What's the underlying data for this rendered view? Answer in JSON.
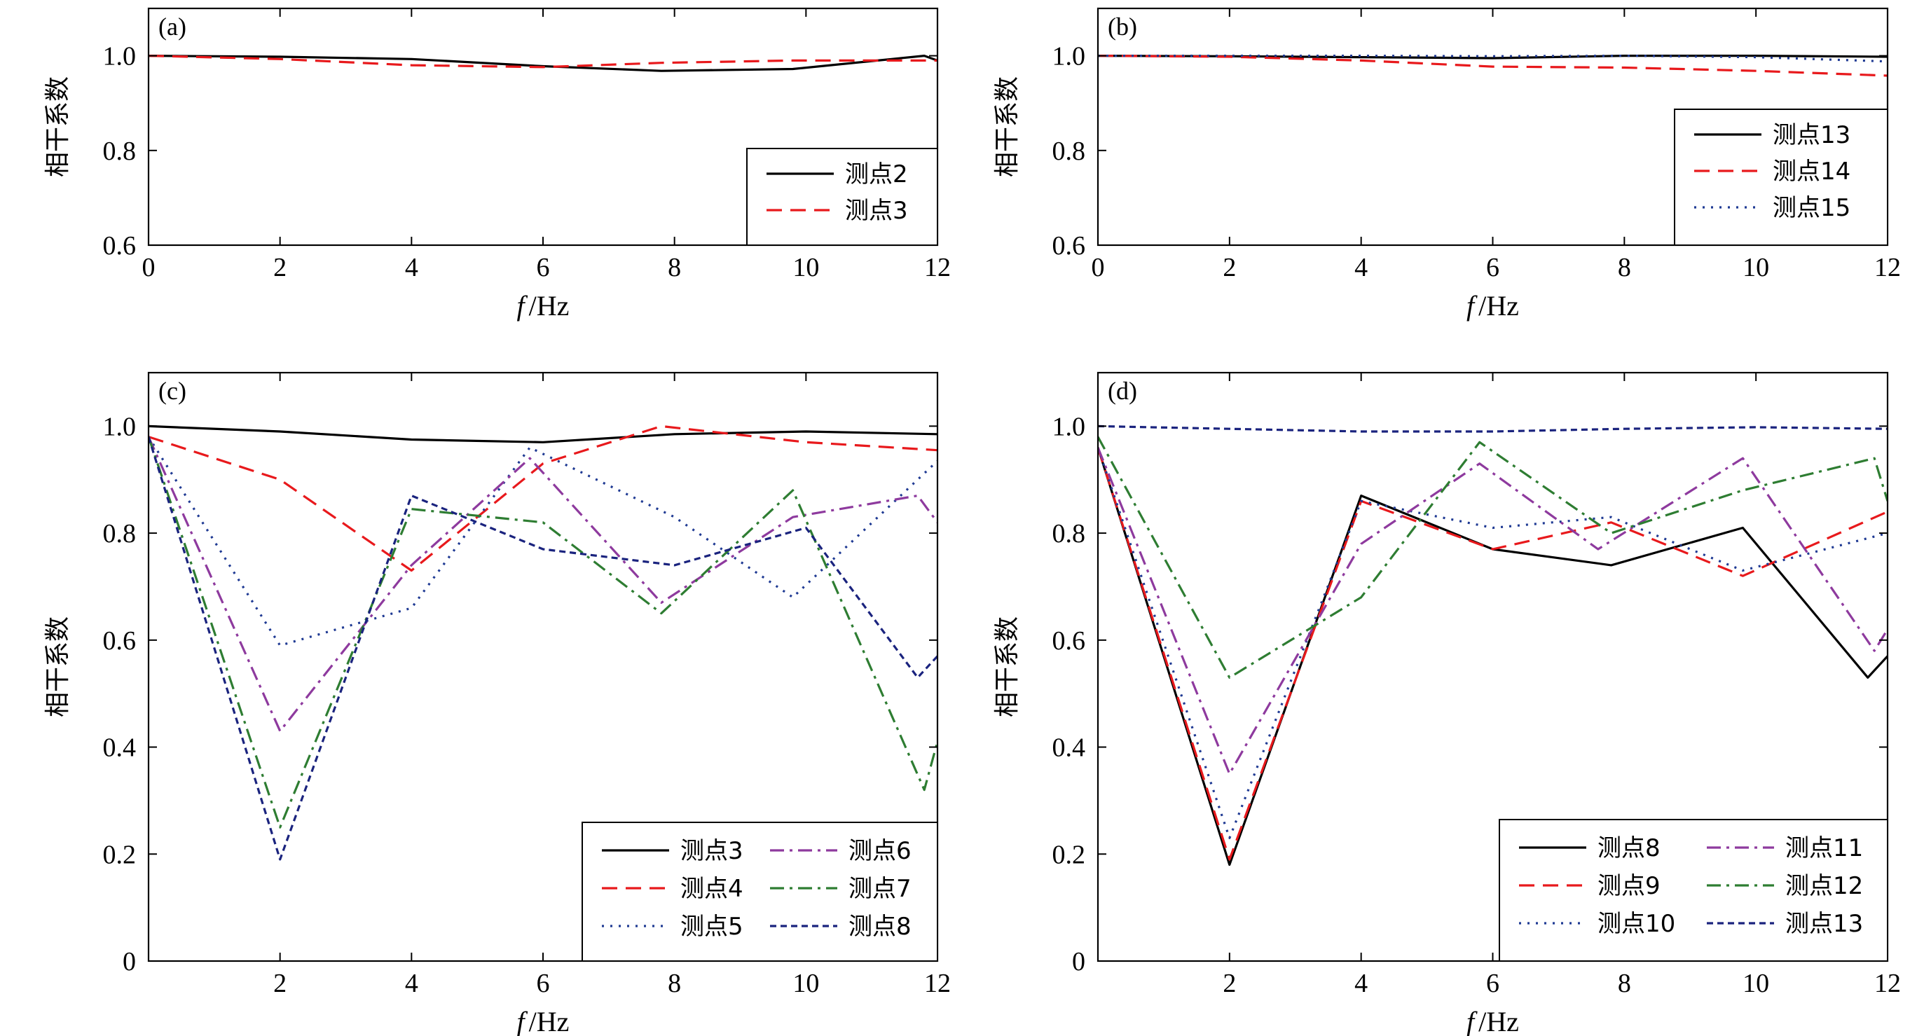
{
  "chart_data": [
    {
      "panel": "(a)",
      "type": "line",
      "ylabel": "相干系数",
      "xlabel_f": "f",
      "xlabel_unit": "/Hz",
      "xlim": [
        0,
        12
      ],
      "ylim": [
        0.6,
        1.1
      ],
      "xticks": [
        0,
        2,
        4,
        6,
        8,
        10,
        12
      ],
      "yticks": [
        0.6,
        0.8,
        1.0
      ],
      "ytick_labels": [
        "0.6",
        "0.8",
        "1.0"
      ],
      "legend_position": "bottom-right",
      "legend_cols": 1,
      "series": [
        {
          "name": "测点2",
          "style": "solid",
          "color": "#000000",
          "x": [
            0,
            2,
            4,
            6,
            7.8,
            9.8,
            11.8,
            12
          ],
          "y": [
            1.0,
            0.998,
            0.993,
            0.978,
            0.968,
            0.972,
            1.0,
            0.99
          ]
        },
        {
          "name": "测点3",
          "style": "dashed",
          "color": "#e8191c",
          "x": [
            0,
            2,
            4,
            6,
            7.8,
            9.8,
            11.8,
            12
          ],
          "y": [
            1.0,
            0.993,
            0.98,
            0.976,
            0.985,
            0.99,
            0.99,
            0.99
          ]
        }
      ]
    },
    {
      "panel": "(b)",
      "type": "line",
      "ylabel": "相干系数",
      "xlabel_f": "f",
      "xlabel_unit": "/Hz",
      "xlim": [
        0,
        12
      ],
      "ylim": [
        0.6,
        1.1
      ],
      "xticks": [
        0,
        2,
        4,
        6,
        8,
        10,
        12
      ],
      "yticks": [
        0.6,
        0.8,
        1.0
      ],
      "ytick_labels": [
        "0.6",
        "0.8",
        "1.0"
      ],
      "legend_position": "bottom-right",
      "legend_cols": 1,
      "series": [
        {
          "name": "测点13",
          "style": "solid",
          "color": "#000000",
          "x": [
            0,
            2,
            4,
            6,
            8,
            10,
            12
          ],
          "y": [
            1.0,
            0.999,
            0.997,
            0.995,
            1.0,
            1.0,
            0.998
          ]
        },
        {
          "name": "测点14",
          "style": "dashed",
          "color": "#e8191c",
          "x": [
            0,
            2,
            4,
            6,
            8,
            10,
            12
          ],
          "y": [
            1.0,
            0.998,
            0.99,
            0.977,
            0.975,
            0.968,
            0.958
          ]
        },
        {
          "name": "测点15",
          "style": "dotted",
          "color": "#1f3a93",
          "x": [
            0,
            2,
            4,
            6,
            8,
            10,
            12
          ],
          "y": [
            1.0,
            1.0,
            1.0,
            0.999,
            1.0,
            0.997,
            0.988
          ]
        }
      ]
    },
    {
      "panel": "(c)",
      "type": "line",
      "ylabel": "相干系数",
      "xlabel_f": "f",
      "xlabel_unit": "/Hz",
      "xlim": [
        0,
        12
      ],
      "ylim": [
        0,
        1.1
      ],
      "xticks": [
        2,
        4,
        6,
        8,
        10,
        12
      ],
      "yticks": [
        0,
        0.2,
        0.4,
        0.6,
        0.8,
        1.0
      ],
      "ytick_labels": [
        "0",
        "0.2",
        "0.4",
        "0.6",
        "0.8",
        "1.0"
      ],
      "legend_position": "bottom-right",
      "legend_cols": 2,
      "series": [
        {
          "name": "测点3",
          "style": "solid",
          "color": "#000000",
          "x": [
            0,
            2,
            4,
            6,
            8,
            10,
            12
          ],
          "y": [
            1.0,
            0.99,
            0.975,
            0.97,
            0.985,
            0.99,
            0.985
          ]
        },
        {
          "name": "测点4",
          "style": "dashed",
          "color": "#e8191c",
          "x": [
            0,
            2,
            4,
            6,
            7.8,
            10,
            12
          ],
          "y": [
            0.98,
            0.9,
            0.73,
            0.93,
            1.0,
            0.97,
            0.955
          ]
        },
        {
          "name": "测点5",
          "style": "dotted",
          "color": "#1f3a93",
          "x": [
            0,
            2,
            4,
            5.8,
            8,
            9.8,
            12
          ],
          "y": [
            0.98,
            0.59,
            0.66,
            0.96,
            0.83,
            0.68,
            0.935
          ]
        },
        {
          "name": "测点6",
          "style": "dashdot",
          "color": "#8e3a9e",
          "x": [
            0,
            2,
            4,
            5.8,
            7.8,
            9.8,
            11.7,
            12
          ],
          "y": [
            0.98,
            0.43,
            0.74,
            0.94,
            0.67,
            0.83,
            0.87,
            0.82
          ]
        },
        {
          "name": "测点7",
          "style": "dashdot",
          "color": "#2e7d32",
          "x": [
            0,
            2,
            4,
            6,
            7.8,
            9.8,
            11.8,
            12
          ],
          "y": [
            0.98,
            0.25,
            0.845,
            0.82,
            0.65,
            0.88,
            0.32,
            0.41
          ]
        },
        {
          "name": "测点8",
          "style": "densedash",
          "color": "#1a237e",
          "x": [
            0,
            2,
            4,
            6,
            8,
            10,
            11.7,
            12
          ],
          "y": [
            0.98,
            0.19,
            0.87,
            0.77,
            0.74,
            0.81,
            0.53,
            0.57
          ]
        }
      ]
    },
    {
      "panel": "(d)",
      "type": "line",
      "ylabel": "相干系数",
      "xlabel_f": "f",
      "xlabel_unit": "/Hz",
      "xlim": [
        0,
        12
      ],
      "ylim": [
        0,
        1.1
      ],
      "xticks": [
        2,
        4,
        6,
        8,
        10,
        12
      ],
      "yticks": [
        0,
        0.2,
        0.4,
        0.6,
        0.8,
        1.0
      ],
      "ytick_labels": [
        "0",
        "0.2",
        "0.4",
        "0.6",
        "0.8",
        "1.0"
      ],
      "legend_position": "bottom-right",
      "legend_cols": 2,
      "series": [
        {
          "name": "测点8",
          "style": "solid",
          "color": "#000000",
          "x": [
            0,
            2,
            4,
            6,
            7.8,
            9.8,
            11.7,
            12
          ],
          "y": [
            0.96,
            0.18,
            0.87,
            0.77,
            0.74,
            0.81,
            0.53,
            0.57
          ]
        },
        {
          "name": "测点9",
          "style": "dashed",
          "color": "#e8191c",
          "x": [
            0,
            2,
            4,
            6,
            7.8,
            9.8,
            12
          ],
          "y": [
            0.96,
            0.19,
            0.86,
            0.77,
            0.82,
            0.72,
            0.84
          ]
        },
        {
          "name": "测点10",
          "style": "dotted",
          "color": "#1f3a93",
          "x": [
            0,
            2,
            4,
            6,
            7.8,
            9.8,
            12
          ],
          "y": [
            0.96,
            0.23,
            0.86,
            0.81,
            0.83,
            0.73,
            0.8
          ]
        },
        {
          "name": "测点11",
          "style": "dashdot",
          "color": "#8e3a9e",
          "x": [
            0,
            2,
            4,
            5.8,
            7.6,
            9.8,
            11.8,
            12
          ],
          "y": [
            0.96,
            0.35,
            0.78,
            0.93,
            0.77,
            0.94,
            0.58,
            0.62
          ]
        },
        {
          "name": "测点12",
          "style": "dashdot",
          "color": "#2e7d32",
          "x": [
            0,
            2,
            4,
            5.8,
            7.8,
            9.8,
            11.8,
            12
          ],
          "y": [
            0.98,
            0.53,
            0.68,
            0.97,
            0.8,
            0.88,
            0.94,
            0.86
          ]
        },
        {
          "name": "测点13",
          "style": "densedash",
          "color": "#1a237e",
          "x": [
            0,
            2,
            4,
            6,
            8,
            10,
            12
          ],
          "y": [
            1.0,
            0.995,
            0.99,
            0.99,
            0.995,
            0.998,
            0.995
          ]
        }
      ]
    }
  ]
}
